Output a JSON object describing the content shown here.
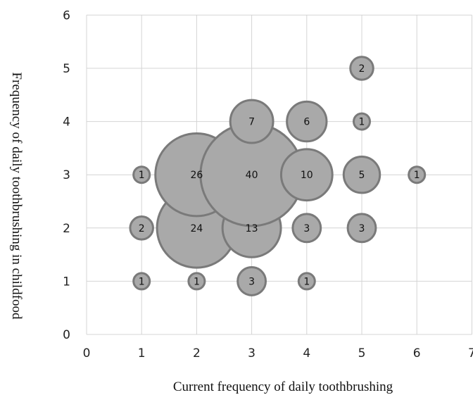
{
  "chart_data": {
    "type": "scatter",
    "subtype": "bubble",
    "title": "",
    "xlabel": "Current frequency of daily toothbrushing",
    "ylabel": "Frequency of daily toothbrushing in childfood",
    "xlim": [
      0,
      7
    ],
    "ylim": [
      0,
      6
    ],
    "x_ticks": [
      "0",
      "1",
      "2",
      "3",
      "4",
      "5",
      "6",
      "7"
    ],
    "y_ticks": [
      "0",
      "1",
      "2",
      "3",
      "4",
      "5",
      "6"
    ],
    "grid": true,
    "bubble_color": "#a9a9a9",
    "bubble_edge_color": "#7a7a7a",
    "points": [
      {
        "x": 1,
        "y": 1,
        "count": "1"
      },
      {
        "x": 2,
        "y": 1,
        "count": "1"
      },
      {
        "x": 3,
        "y": 1,
        "count": "3"
      },
      {
        "x": 4,
        "y": 1,
        "count": "1"
      },
      {
        "x": 1,
        "y": 2,
        "count": "2"
      },
      {
        "x": 2,
        "y": 2,
        "count": "24"
      },
      {
        "x": 3,
        "y": 2,
        "count": "13"
      },
      {
        "x": 4,
        "y": 2,
        "count": "3"
      },
      {
        "x": 5,
        "y": 2,
        "count": "3"
      },
      {
        "x": 1,
        "y": 3,
        "count": "1"
      },
      {
        "x": 2,
        "y": 3,
        "count": "26"
      },
      {
        "x": 3,
        "y": 3,
        "count": "40"
      },
      {
        "x": 4,
        "y": 3,
        "count": "10"
      },
      {
        "x": 5,
        "y": 3,
        "count": "5"
      },
      {
        "x": 6,
        "y": 3,
        "count": "1"
      },
      {
        "x": 3,
        "y": 4,
        "count": "7"
      },
      {
        "x": 4,
        "y": 4,
        "count": "6"
      },
      {
        "x": 5,
        "y": 4,
        "count": "1"
      },
      {
        "x": 5,
        "y": 5,
        "count": "2"
      }
    ]
  }
}
